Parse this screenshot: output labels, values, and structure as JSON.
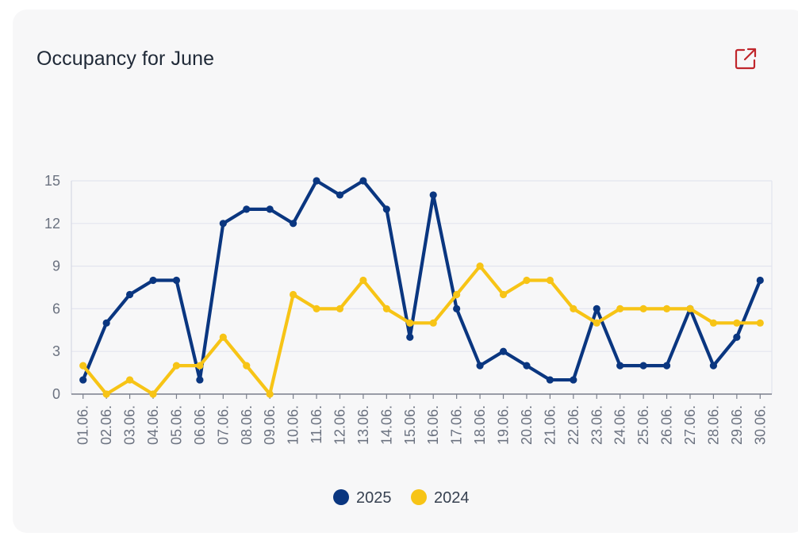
{
  "card": {
    "title": "Occupancy for June",
    "open_icon": "external-link-icon"
  },
  "colors": {
    "series_2025": "#0a3680",
    "series_2024": "#f7c416",
    "grid": "#e3e5ef",
    "axis_text": "#6b7280",
    "icon": "#c0262c"
  },
  "chart_data": {
    "type": "line",
    "title": "Occupancy for June",
    "xlabel": "",
    "ylabel": "",
    "ylim": [
      0,
      15
    ],
    "yticks": [
      0,
      3,
      6,
      9,
      12,
      15
    ],
    "grid": true,
    "legend": "bottom-center",
    "categories": [
      "01.06.",
      "02.06.",
      "03.06.",
      "04.06.",
      "05.06.",
      "06.06.",
      "07.06.",
      "08.06.",
      "09.06.",
      "10.06.",
      "11.06.",
      "12.06.",
      "13.06.",
      "14.06.",
      "15.06.",
      "16.06.",
      "17.06.",
      "18.06.",
      "19.06.",
      "20.06.",
      "21.06.",
      "22.06.",
      "23.06.",
      "24.06.",
      "25.06.",
      "26.06.",
      "27.06.",
      "28.06.",
      "29.06.",
      "30.06."
    ],
    "series": [
      {
        "name": "2025",
        "color": "#0a3680",
        "values": [
          1,
          5,
          7,
          8,
          8,
          1,
          12,
          13,
          13,
          12,
          15,
          14,
          15,
          13,
          4,
          14,
          6,
          2,
          3,
          2,
          1,
          1,
          6,
          2,
          2,
          2,
          6,
          2,
          4,
          8
        ]
      },
      {
        "name": "2024",
        "color": "#f7c416",
        "values": [
          2,
          0,
          1,
          0,
          2,
          2,
          4,
          2,
          0,
          7,
          6,
          6,
          8,
          6,
          5,
          5,
          7,
          9,
          7,
          8,
          8,
          6,
          5,
          6,
          6,
          6,
          6,
          5,
          5,
          5
        ]
      }
    ]
  }
}
